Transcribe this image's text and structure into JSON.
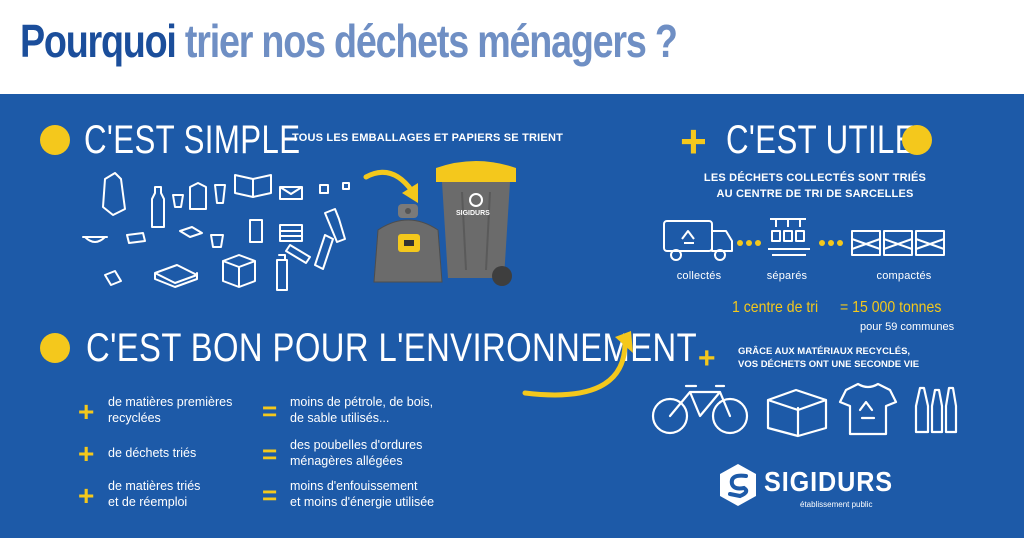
{
  "title": {
    "part1": "Pourquoi",
    "part2": "trier nos déchets ménagers ?"
  },
  "simple": {
    "heading": "C'EST SIMPLE",
    "caption": "TOUS LES EMBALLAGES ET PAPIERS SE TRIENT",
    "bin_brand": "SIGIDURS"
  },
  "utile": {
    "heading": "C'EST UTILE",
    "caption_line1": "LES DÉCHETS COLLECTÉS SONT TRIÉS",
    "caption_line2": "AU CENTRE DE TRI DE SARCELLES",
    "steps": [
      "collectés",
      "séparés",
      "compactés"
    ],
    "stat_left": "1 centre de tri",
    "stat_right": "= 15 000 tonnes",
    "stat_sub": "pour 59 communes",
    "recycle_line1": "GRÂCE AUX MATÉRIAUX RECYCLÉS,",
    "recycle_line2": "VOS DÉCHETS ONT UNE SECONDE VIE"
  },
  "environment": {
    "heading": "C'EST BON POUR L'ENVIRONNEMENT",
    "rows": [
      {
        "left1": "de matières premières",
        "left2": "recyclées",
        "right1": "moins de pétrole, de bois,",
        "right2": "de sable utilisés..."
      },
      {
        "left1": "de déchets triés",
        "left2": "",
        "right1": "des poubelles d'ordures",
        "right2": "ménagères allégées"
      },
      {
        "left1": "de matières triés",
        "left2": "et de réemploi",
        "right1": "moins d'enfouissement",
        "right2": "et moins d'énergie utilisée"
      }
    ]
  },
  "logo": {
    "name": "SIGIDURS",
    "subtitle": "établissement public"
  },
  "colors": {
    "blue": "#1d5aa8",
    "dark_blue": "#1b4e9b",
    "light_blue": "#6f8fc4",
    "yellow": "#f4c81c"
  }
}
